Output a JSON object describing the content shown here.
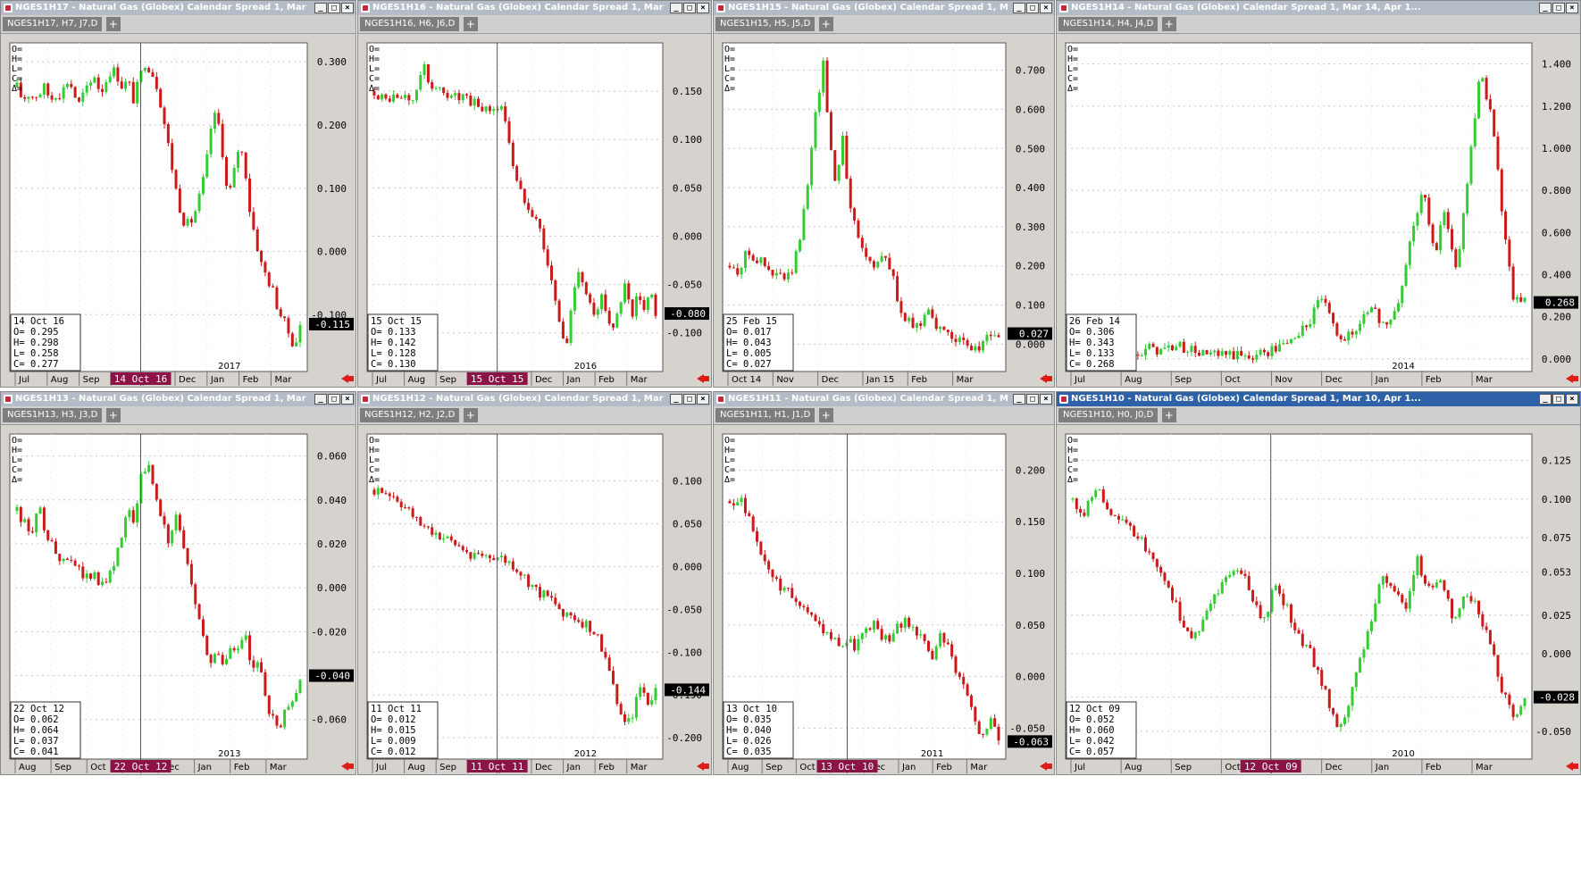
{
  "colors": {
    "up": "#33cc33",
    "down": "#cc1a1a",
    "date_tag_bg": "#8b1346",
    "window_bg": "#d6d3ce",
    "active_title": "#2d62a8"
  },
  "icons": {
    "restore": "restore-icon",
    "minimize": "minimize-icon",
    "maximize": "maximize-icon",
    "close": "close-icon",
    "add_tab": "plus-icon",
    "scroll": "red-arrow-left-icon"
  },
  "window_buttons": {
    "minimize": "_",
    "maximize": "□",
    "close": "×"
  },
  "crosshair_ohlc_labels": {
    "o": "O=",
    "h": "H=",
    "l": "L=",
    "c": "C=",
    "d": "Δ="
  },
  "panels": [
    {
      "title": "NGES1H17 - Natural Gas (Globex) Calendar Spread 1, Mar 17, Apr 1...",
      "symbol": "NGES1H17, H7, J7,D",
      "active": false,
      "info": {
        "date": "14 Oct 16",
        "o": "O=   0.295",
        "h": "H=   0.298",
        "l": "L=   0.258",
        "c": "C=   0.277"
      },
      "chart_data": {
        "type": "candlestick",
        "x_tick_labels": [
          "Jul",
          "Aug",
          "Sep",
          "Oct",
          "Nov",
          "Dec",
          "Jan",
          "Feb",
          "Mar"
        ],
        "year_label": "2017",
        "crosshair_date": "14 Oct 16",
        "y_ticks": [
          "0.300",
          "0.200",
          "0.100",
          "0.000",
          "-0.100"
        ],
        "ylim": [
          -0.19,
          0.33
        ],
        "last_value": "-0.115",
        "path": [
          0.26,
          0.24,
          0.25,
          0.245,
          0.25,
          0.26,
          0.24,
          0.25,
          0.25,
          0.27,
          0.26,
          0.23,
          0.25,
          0.26,
          0.28,
          0.25,
          0.27,
          0.29,
          0.28,
          0.26,
          0.27,
          0.24,
          0.27,
          0.3,
          0.29,
          0.27,
          0.23,
          0.18,
          0.13,
          0.08,
          0.05,
          0.04,
          0.06,
          0.09,
          0.13,
          0.2,
          0.22,
          0.16,
          0.08,
          0.12,
          0.17,
          0.14,
          0.06,
          0.02,
          -0.02,
          -0.04,
          -0.06,
          -0.09,
          -0.11,
          -0.13,
          -0.15,
          -0.12
        ]
      }
    },
    {
      "title": "NGES1H16 - Natural Gas (Globex) Calendar Spread 1, Mar 16, Apr 1...",
      "symbol": "NGES1H16, H6, J6,D",
      "active": false,
      "info": {
        "date": "15 Oct 15",
        "o": "O=   0.133",
        "h": "H=   0.142",
        "l": "L=   0.128",
        "c": "C=   0.130"
      },
      "chart_data": {
        "type": "candlestick",
        "x_tick_labels": [
          "Jul",
          "Aug",
          "Sep",
          "Oct",
          "Nov",
          "Dec",
          "Jan",
          "Feb",
          "Mar"
        ],
        "year_label": "2016",
        "crosshair_date": "15 Oct 15",
        "y_ticks": [
          "0.150",
          "0.100",
          "0.050",
          "0.000",
          "-0.050",
          "-0.100"
        ],
        "ylim": [
          -0.14,
          0.2
        ],
        "last_value": "-0.080",
        "path": [
          0.15,
          0.145,
          0.14,
          0.145,
          0.14,
          0.145,
          0.14,
          0.145,
          0.18,
          0.16,
          0.155,
          0.15,
          0.145,
          0.15,
          0.14,
          0.145,
          0.135,
          0.14,
          0.13,
          0.135,
          0.13,
          0.135,
          0.12,
          0.08,
          0.05,
          0.04,
          0.03,
          0.02,
          0.0,
          -0.03,
          -0.06,
          -0.09,
          -0.12,
          -0.07,
          -0.03,
          -0.05,
          -0.07,
          -0.09,
          -0.06,
          -0.08,
          -0.1,
          -0.07,
          -0.05,
          -0.09,
          -0.06,
          -0.08,
          -0.05,
          -0.08
        ]
      }
    },
    {
      "title": "NGES1H15 - Natural Gas (Globex) Calendar Spread 1, Mar 15, Ap...",
      "symbol": "NGES1H15, H5, J5,D",
      "active": false,
      "info": {
        "date": "25 Feb 15",
        "o": "O=   0.017",
        "h": "H=   0.043",
        "l": "L=   0.005",
        "c": "C=   0.027"
      },
      "chart_data": {
        "type": "candlestick",
        "x_tick_labels": [
          "Oct 14",
          "Nov",
          "Dec",
          "Jan 15",
          "Feb",
          "Mar"
        ],
        "year_label": "",
        "crosshair_date": "",
        "y_ticks": [
          "0.700",
          "0.600",
          "0.500",
          "0.400",
          "0.300",
          "0.200",
          "0.100",
          "0.000"
        ],
        "ylim": [
          -0.07,
          0.77
        ],
        "last_value": "0.027",
        "path": [
          0.2,
          0.18,
          0.21,
          0.24,
          0.22,
          0.21,
          0.19,
          0.17,
          0.18,
          0.16,
          0.19,
          0.25,
          0.35,
          0.5,
          0.62,
          0.72,
          0.52,
          0.4,
          0.55,
          0.38,
          0.3,
          0.25,
          0.22,
          0.2,
          0.23,
          0.21,
          0.18,
          0.1,
          0.06,
          0.05,
          0.04,
          0.07,
          0.1,
          0.05,
          0.02,
          0.03,
          0.02,
          0.0,
          -0.01,
          -0.02,
          0.0,
          0.01,
          0.03,
          0.02
        ]
      }
    },
    {
      "title": "NGES1H14 - Natural Gas (Globex) Calendar Spread 1, Mar 14, Apr 1...",
      "symbol": "NGES1H14, H4, J4,D",
      "active": false,
      "info": {
        "date": "26 Feb 14",
        "o": "O=   0.306",
        "h": "H=   0.343",
        "l": "L=   0.133",
        "c": "C=   0.268"
      },
      "chart_data": {
        "type": "candlestick",
        "x_tick_labels": [
          "Jul",
          "Aug",
          "Sep",
          "Oct",
          "Nov",
          "Dec",
          "Jan",
          "Feb",
          "Mar"
        ],
        "year_label": "2014",
        "crosshair_date": "",
        "y_ticks": [
          "1.400",
          "1.200",
          "1.000",
          "0.800",
          "0.600",
          "0.400",
          "0.200",
          "0.000"
        ],
        "ylim": [
          -0.06,
          1.5
        ],
        "last_value": "0.268",
        "path": [
          0.07,
          0.06,
          0.06,
          0.07,
          0.05,
          0.05,
          0.04,
          0.05,
          0.04,
          0.06,
          0.05,
          0.03,
          0.02,
          0.01,
          0.02,
          0.01,
          0.02,
          0.03,
          0.05,
          0.08,
          0.12,
          0.18,
          0.3,
          0.15,
          0.1,
          0.12,
          0.25,
          0.2,
          0.15,
          0.3,
          0.6,
          0.8,
          0.5,
          0.7,
          0.4,
          0.9,
          1.35,
          1.2,
          0.7,
          0.3,
          0.27
        ]
      }
    },
    {
      "title": "NGES1H13 - Natural Gas (Globex) Calendar Spread 1, Mar 13, Apr 1...",
      "symbol": "NGES1H13, H3, J3,D",
      "active": false,
      "info": {
        "date": "22 Oct 12",
        "o": "O=   0.062",
        "h": "H=   0.064",
        "l": "L=   0.037",
        "c": "C=   0.041"
      },
      "chart_data": {
        "type": "candlestick",
        "x_tick_labels": [
          "Aug",
          "Sep",
          "Oct",
          "Nov",
          "Dec",
          "Jan",
          "Feb",
          "Mar"
        ],
        "year_label": "2013",
        "crosshair_date": "22 Oct 12",
        "y_ticks": [
          "0.060",
          "0.040",
          "0.020",
          "0.000",
          "-0.020",
          "-0.040",
          "-0.060"
        ],
        "ylim": [
          -0.078,
          0.07
        ],
        "last_value": "-0.040",
        "path": [
          0.035,
          0.03,
          0.02,
          0.04,
          0.025,
          0.02,
          0.015,
          0.01,
          0.012,
          0.008,
          0.005,
          0.006,
          0.003,
          0.005,
          0.01,
          0.02,
          0.035,
          0.03,
          0.05,
          0.06,
          0.04,
          0.03,
          0.02,
          0.035,
          0.02,
          0.005,
          -0.01,
          -0.025,
          -0.035,
          -0.03,
          -0.035,
          -0.025,
          -0.03,
          -0.02,
          -0.04,
          -0.035,
          -0.05,
          -0.06,
          -0.065,
          -0.055,
          -0.05,
          -0.04
        ]
      }
    },
    {
      "title": "NGES1H12 - Natural Gas (Globex) Calendar Spread 1, Mar 12, Apr 1...",
      "symbol": "NGES1H12, H2, J2,D",
      "active": false,
      "info": {
        "date": "11 Oct 11",
        "o": "O=   0.012",
        "h": "H=   0.015",
        "l": "L=   0.009",
        "c": "C=   0.012"
      },
      "chart_data": {
        "type": "candlestick",
        "x_tick_labels": [
          "Jul",
          "Aug",
          "Sep",
          "Oct",
          "Nov",
          "Dec",
          "Jan",
          "Feb",
          "Mar"
        ],
        "year_label": "2012",
        "crosshair_date": "11 Oct 11",
        "y_ticks": [
          "0.100",
          "0.050",
          "0.000",
          "-0.050",
          "-0.100",
          "-0.150",
          "-0.200"
        ],
        "ylim": [
          -0.225,
          0.155
        ],
        "last_value": "-0.144",
        "path": [
          0.09,
          0.088,
          0.085,
          0.08,
          0.07,
          0.06,
          0.05,
          0.045,
          0.04,
          0.035,
          0.03,
          0.025,
          0.02,
          0.015,
          0.013,
          0.012,
          0.012,
          0.01,
          0.005,
          0.0,
          -0.01,
          -0.02,
          -0.03,
          -0.035,
          -0.04,
          -0.05,
          -0.055,
          -0.06,
          -0.065,
          -0.07,
          -0.08,
          -0.1,
          -0.13,
          -0.16,
          -0.19,
          -0.17,
          -0.14,
          -0.16,
          -0.145
        ]
      }
    },
    {
      "title": "NGES1H11 - Natural Gas (Globex) Calendar Spread 1, Mar 11, Ap...",
      "symbol": "NGES1H11, H1, J1,D",
      "active": false,
      "info": {
        "date": "13 Oct 10",
        "o": "O=   0.035",
        "h": "H=   0.040",
        "l": "L=   0.026",
        "c": "C=   0.035"
      },
      "chart_data": {
        "type": "candlestick",
        "x_tick_labels": [
          "Aug",
          "Sep",
          "Oct",
          "Nov",
          "Dec",
          "Jan",
          "Feb",
          "Mar"
        ],
        "year_label": "2011",
        "crosshair_date": "13 Oct 10",
        "y_ticks": [
          "0.200",
          "0.150",
          "0.100",
          "0.050",
          "0.000",
          "-0.050"
        ],
        "ylim": [
          -0.08,
          0.235
        ],
        "last_value": "-0.063",
        "path": [
          0.17,
          0.165,
          0.17,
          0.15,
          0.13,
          0.11,
          0.1,
          0.09,
          0.085,
          0.08,
          0.075,
          0.07,
          0.06,
          0.05,
          0.045,
          0.04,
          0.035,
          0.03,
          0.035,
          0.03,
          0.04,
          0.045,
          0.05,
          0.04,
          0.035,
          0.045,
          0.05,
          0.055,
          0.05,
          0.04,
          0.03,
          0.02,
          0.04,
          0.03,
          0.015,
          0.0,
          -0.01,
          -0.03,
          -0.05,
          -0.06,
          -0.04,
          -0.06
        ]
      }
    },
    {
      "title": "NGES1H10 - Natural Gas (Globex) Calendar Spread 1, Mar 10, Apr 1...",
      "symbol": "NGES1H10, H0, J0,D",
      "active": true,
      "info": {
        "date": "12 Oct 09",
        "o": "O=   0.052",
        "h": "H=   0.060",
        "l": "L=   0.042",
        "c": "C=   0.057"
      },
      "chart_data": {
        "type": "candlestick",
        "x_tick_labels": [
          "Jul",
          "Aug",
          "Sep",
          "Oct",
          "Nov",
          "Dec",
          "Jan",
          "Feb",
          "Mar"
        ],
        "year_label": "2010",
        "crosshair_date": "12 Oct 09",
        "y_ticks": [
          "0.125",
          "0.100",
          "0.075",
          "0.053",
          "0.025",
          "0.000",
          "-0.028",
          "-0.050"
        ],
        "ylim": [
          -0.068,
          0.142
        ],
        "last_value": "-0.028",
        "path": [
          0.1,
          0.09,
          0.11,
          0.095,
          0.085,
          0.08,
          0.07,
          0.06,
          0.045,
          0.025,
          0.01,
          0.02,
          0.04,
          0.05,
          0.055,
          0.04,
          0.02,
          0.045,
          0.03,
          0.01,
          0.0,
          -0.02,
          -0.045,
          -0.04,
          -0.01,
          0.02,
          0.05,
          0.04,
          0.03,
          0.06,
          0.04,
          0.05,
          0.02,
          0.04,
          0.03,
          0.01,
          -0.02,
          -0.04,
          -0.03
        ]
      }
    }
  ]
}
